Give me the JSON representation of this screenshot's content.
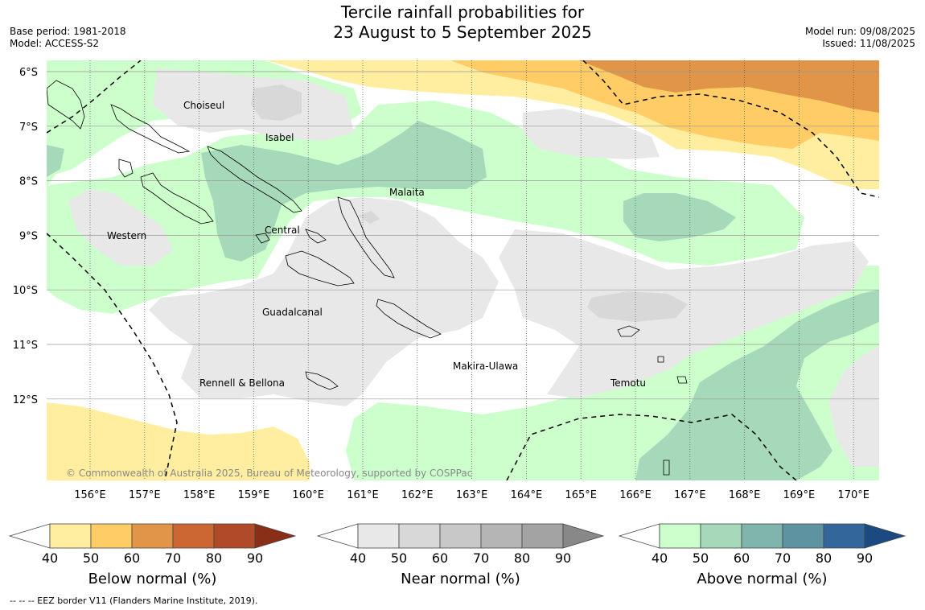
{
  "header": {
    "title_line1": "Tercile rainfall probabilities for",
    "title_line2": "23 August to 5 September 2025",
    "base_period": "Base period: 1981-2018",
    "model": "Model: ACCESS-S2",
    "model_run": "Model run: 09/08/2025",
    "issued": "Issued: 11/08/2025"
  },
  "map": {
    "lat_labels": [
      "6°S",
      "7°S",
      "8°S",
      "9°S",
      "10°S",
      "11°S",
      "12°S"
    ],
    "lon_labels": [
      "156°E",
      "157°E",
      "158°E",
      "159°E",
      "160°E",
      "161°E",
      "162°E",
      "163°E",
      "164°E",
      "165°E",
      "166°E",
      "167°E",
      "168°E",
      "169°E",
      "170°E"
    ],
    "regions": {
      "choiseul": "Choiseul",
      "isabel": "Isabel",
      "malaita": "Malaita",
      "western": "Western",
      "central": "Central",
      "guadalcanal": "Guadalcanal",
      "makira": "Makira-Ulawa",
      "rennell": "Rennell & Bellona",
      "temotu": "Temotu"
    },
    "copyright": "© Commonwealth of Australia 2025, Bureau of Meteorology, supported by COSPPac"
  },
  "legends": [
    {
      "title": "Below normal (%)",
      "colors": [
        "#ffeea0",
        "#ffcc66",
        "#e09548",
        "#cc6633",
        "#b04a28",
        "#8a2e17"
      ],
      "ticks": [
        "40",
        "50",
        "60",
        "70",
        "80",
        "90"
      ]
    },
    {
      "title": "Near normal (%)",
      "colors": [
        "#e8e8e8",
        "#d8d8d8",
        "#c8c8c8",
        "#b5b5b5",
        "#a3a3a3",
        "#888888"
      ],
      "ticks": [
        "40",
        "50",
        "60",
        "70",
        "80",
        "90"
      ]
    },
    {
      "title": "Above normal (%)",
      "colors": [
        "#ccffcc",
        "#a6d9b9",
        "#80b5ad",
        "#5e93a1",
        "#33669a",
        "#1a4a80"
      ],
      "ticks": [
        "40",
        "50",
        "60",
        "70",
        "80",
        "90"
      ]
    }
  ],
  "footnote": "--  --  -- EEZ border V11 (Flanders Marine Institute, 2019)."
}
